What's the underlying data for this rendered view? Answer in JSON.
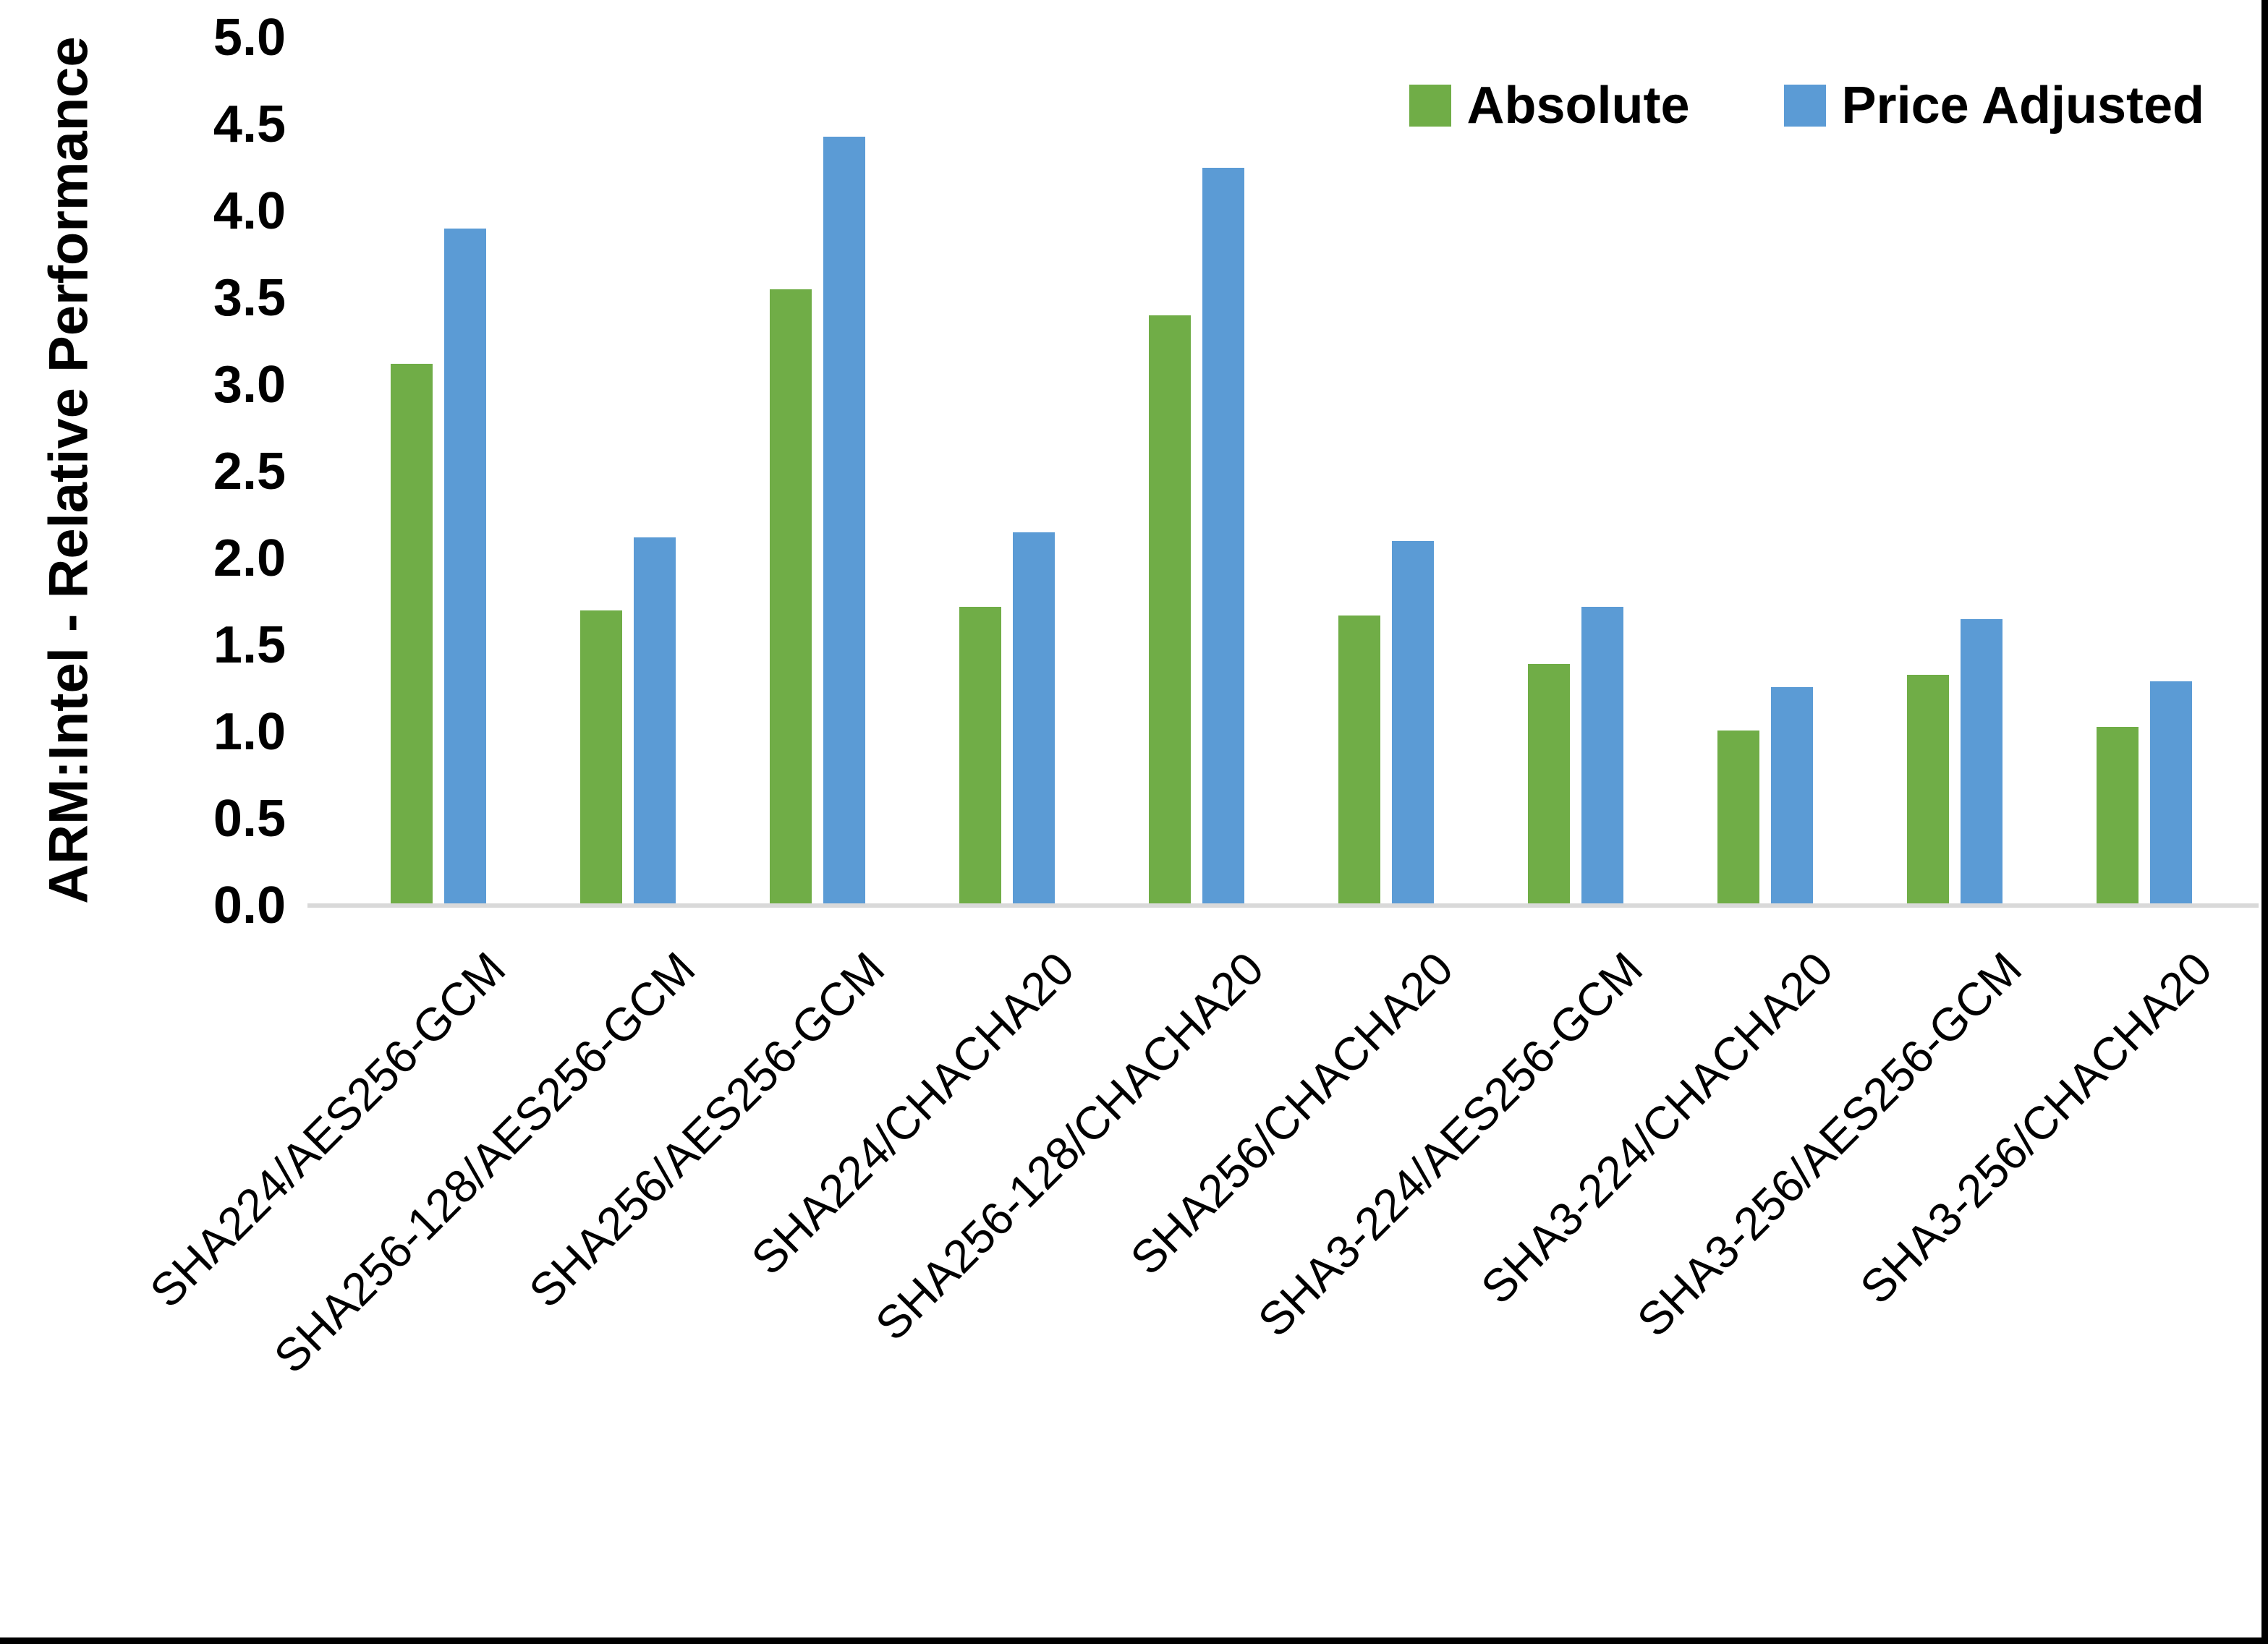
{
  "figure": {
    "background": "#ffffff",
    "border_color": "#000000"
  },
  "y_axis": {
    "title": "ARM:Intel - Relative Performance",
    "tick_labels": [
      "5.0",
      "4.5",
      "4.0",
      "3.5",
      "3.0",
      "2.5",
      "2.0",
      "1.5",
      "1.0",
      "0.5",
      "0.0"
    ],
    "axis_line_color": "#D9D9D9"
  },
  "chart_data": {
    "type": "bar",
    "title": "",
    "xlabel": "",
    "ylabel": "ARM:Intel - Relative Performance",
    "ylim": [
      0,
      5
    ],
    "tick_step": 0.5,
    "grid": false,
    "legend_position": "top-right",
    "categories": [
      "SHA224/AES256-GCM",
      "SHA256-128/AES256-GCM",
      "SHA256/AES256-GCM",
      "SHA224/CHACHA20",
      "SHA256-128/CHACHA20",
      "SHA256/CHACHA20",
      "SHA3-224/AES256-GCM",
      "SHA3-224/CHACHA20",
      "SHA3-256/AES256-GCM",
      "SHA3-256/CHACHA20"
    ],
    "series": [
      {
        "name": "Absolute",
        "color": "#70AD47",
        "values": [
          3.12,
          1.7,
          3.55,
          1.72,
          3.4,
          1.67,
          1.39,
          1.01,
          1.33,
          1.03
        ]
      },
      {
        "name": "Price Adjusted",
        "color": "#5B9BD5",
        "values": [
          3.9,
          2.12,
          4.43,
          2.15,
          4.25,
          2.1,
          1.72,
          1.26,
          1.65,
          1.29
        ]
      }
    ]
  }
}
